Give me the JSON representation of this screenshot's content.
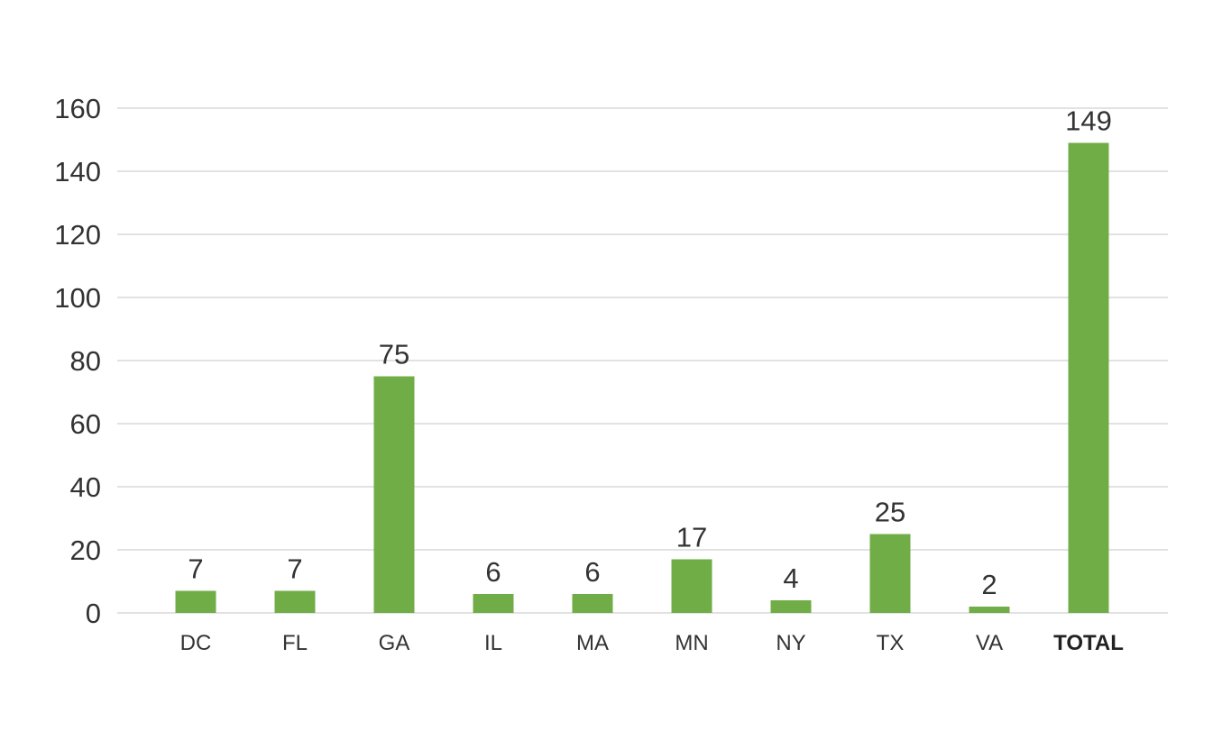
{
  "chart_data": {
    "type": "bar",
    "categories": [
      "DC",
      "FL",
      "GA",
      "IL",
      "MA",
      "MN",
      "NY",
      "TX",
      "VA",
      "TOTAL"
    ],
    "values": [
      7,
      7,
      75,
      6,
      6,
      17,
      4,
      25,
      2,
      149
    ],
    "data_labels": [
      "7",
      "7",
      "75",
      "6",
      "6",
      "17",
      "4",
      "25",
      "2",
      "149"
    ],
    "title": "",
    "xlabel": "",
    "ylabel": "",
    "ylim": [
      0,
      160
    ],
    "yticks": [
      0,
      20,
      40,
      60,
      80,
      100,
      120,
      140,
      160
    ],
    "grid": true,
    "legend": "none",
    "bar_color": "#70ad47",
    "bold_categories": [
      "TOTAL"
    ]
  }
}
